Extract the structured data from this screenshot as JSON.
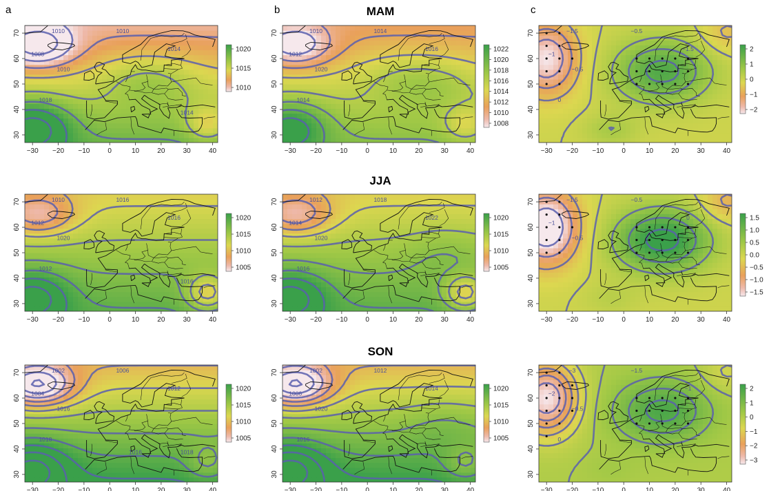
{
  "figure": {
    "panel_letters": [
      "a",
      "b",
      "c"
    ],
    "season_titles": [
      "MAM",
      "JJA",
      "SON"
    ]
  },
  "axes": {
    "x_ticks": [
      -30,
      -20,
      -10,
      0,
      10,
      20,
      30,
      40
    ],
    "y_ticks": [
      30,
      40,
      50,
      60,
      70
    ],
    "x_range": [
      -33,
      42
    ],
    "y_range": [
      27,
      73
    ]
  },
  "colors": {
    "contour": "#5a5fae",
    "coast": "#111111",
    "land_green": "#3aa64a",
    "mid_yellow": "#dcdc4a",
    "warm_orange": "#e9a25c",
    "low_pink": "#f2c7cc"
  },
  "panels": [
    {
      "row": 0,
      "col": 0,
      "colorbar_ticks": [
        "1020",
        "1015",
        "1010"
      ],
      "contour_labels": [
        "1010",
        "1008",
        "1010",
        "1014",
        "1010",
        "1018",
        "1014"
      ],
      "stipple": false
    },
    {
      "row": 0,
      "col": 1,
      "colorbar_ticks": [
        "1022",
        "1020",
        "1018",
        "1016",
        "1014",
        "1012",
        "1010",
        "1008"
      ],
      "contour_labels": [
        "1010",
        "1012",
        "1014",
        "1016",
        "1020",
        "1014"
      ],
      "stipple": false
    },
    {
      "row": 0,
      "col": 2,
      "colorbar_ticks": [
        "2",
        "1",
        "0",
        "−1",
        "−2"
      ],
      "contour_labels": [
        "−1.5",
        "−1",
        "−0.5",
        "−1.5",
        "−0.5",
        "0"
      ],
      "stipple": true
    },
    {
      "row": 1,
      "col": 0,
      "colorbar_ticks": [
        "1020",
        "1015",
        "1010",
        "1005"
      ],
      "contour_labels": [
        "1010",
        "1012",
        "1016",
        "1016",
        "1020",
        "1012",
        "1016"
      ],
      "stipple": false
    },
    {
      "row": 1,
      "col": 1,
      "colorbar_ticks": [
        "1020",
        "1015",
        "1010",
        "1005"
      ],
      "contour_labels": [
        "1012",
        "1014",
        "1018",
        "1022",
        "1020",
        "1016"
      ],
      "stipple": false
    },
    {
      "row": 1,
      "col": 2,
      "colorbar_ticks": [
        "1.5",
        "1.0",
        "0.5",
        "0.0",
        "−0.5",
        "−1.0",
        "−1.5"
      ],
      "contour_labels": [
        "−1.5",
        "−1",
        "−0.5",
        "0",
        "−0.5"
      ],
      "stipple": true
    },
    {
      "row": 2,
      "col": 0,
      "colorbar_ticks": [
        "1020",
        "1015",
        "1010",
        "1005"
      ],
      "contour_labels": [
        "1002",
        "1004",
        "1006",
        "1012",
        "1016",
        "1018",
        "1018",
        "1016"
      ],
      "stipple": false
    },
    {
      "row": 2,
      "col": 1,
      "colorbar_ticks": [
        "1020",
        "1015",
        "1010",
        "1005"
      ],
      "contour_labels": [
        "1002",
        "1006",
        "1012",
        "1014",
        "1020",
        "1016"
      ],
      "stipple": false
    },
    {
      "row": 2,
      "col": 2,
      "colorbar_ticks": [
        "2",
        "1",
        "0",
        "−1",
        "−2",
        "−3"
      ],
      "contour_labels": [
        "−3",
        "−2",
        "−1.5",
        "−1",
        "−0.5",
        "0"
      ],
      "stipple": true
    }
  ]
}
